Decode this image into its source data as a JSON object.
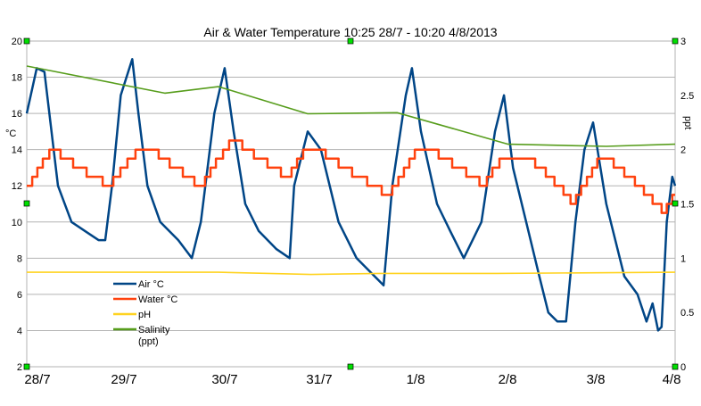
{
  "chart_data": {
    "type": "line",
    "title": "Air & Water Temperature 10:25 28/7 - 10:20 4/8/2013",
    "ylabel": "°C",
    "y2label": "ppt",
    "ylim": [
      2,
      20
    ],
    "yticks": [
      2,
      4,
      6,
      8,
      10,
      12,
      14,
      16,
      18,
      20
    ],
    "y2lim": [
      0,
      3
    ],
    "y2ticks": [
      "0",
      "0.5",
      "1",
      "1.5",
      "2",
      "2.5",
      "3"
    ],
    "xrange": [
      "28/7 10:25",
      "4/8 10:20"
    ],
    "xticks": [
      "28/7",
      "29/7",
      "30/7",
      "31/7",
      "1/8",
      "2/8",
      "3/8",
      "4/8"
    ],
    "grid": true,
    "legend_position": "bottom-left",
    "series": [
      {
        "name": "Air °C",
        "axis": "left",
        "color": "#004586",
        "points": [
          [
            "28/7 10:25",
            16
          ],
          [
            "28/7 13:00",
            18.5
          ],
          [
            "28/7 15:00",
            18.3
          ],
          [
            "28/7 18:30",
            12
          ],
          [
            "28/7 22:00",
            10
          ],
          [
            "29/7 01:30",
            9.5
          ],
          [
            "29/7 05:00",
            9
          ],
          [
            "29/7 06:45",
            9
          ],
          [
            "29/7 08:30",
            12
          ],
          [
            "29/7 10:45",
            17
          ],
          [
            "29/7 13:45",
            19
          ],
          [
            "29/7 15:20",
            16
          ],
          [
            "29/7 17:40",
            12
          ],
          [
            "29/7 21:00",
            10
          ],
          [
            "30/7 01:40",
            9
          ],
          [
            "30/7 05:10",
            8
          ],
          [
            "30/7 07:30",
            10
          ],
          [
            "30/7 11:00",
            16
          ],
          [
            "30/7 13:40",
            18.5
          ],
          [
            "30/7 16:00",
            15
          ],
          [
            "30/7 19:00",
            11
          ],
          [
            "30/7 22:30",
            9.5
          ],
          [
            "31/7 03:05",
            8.5
          ],
          [
            "31/7 06:30",
            8
          ],
          [
            "31/7 07:40",
            12
          ],
          [
            "31/7 11:10",
            15
          ],
          [
            "31/7 14:35",
            14
          ],
          [
            "31/7 19:10",
            10
          ],
          [
            "31/7 23:50",
            8
          ],
          [
            "1/8 04:30",
            7
          ],
          [
            "1/8 06:50",
            6.5
          ],
          [
            "1/8 09:05",
            12
          ],
          [
            "1/8 12:35",
            17
          ],
          [
            "1/8 14:10",
            18.5
          ],
          [
            "1/8 16:30",
            15
          ],
          [
            "1/8 20:40",
            11
          ],
          [
            "2/8 00:05",
            9.5
          ],
          [
            "2/8 03:35",
            8
          ],
          [
            "2/8 08:10",
            10
          ],
          [
            "2/8 11:40",
            15
          ],
          [
            "2/8 14:00",
            17
          ],
          [
            "2/8 16:20",
            13
          ],
          [
            "2/8 19:45",
            10
          ],
          [
            "2/8 23:10",
            7
          ],
          [
            "3/8 01:30",
            5
          ],
          [
            "3/8 03:50",
            4.5
          ],
          [
            "3/8 06:05",
            4.5
          ],
          [
            "3/8 08:30",
            10
          ],
          [
            "3/8 10:50",
            14
          ],
          [
            "3/8 13:05",
            15.5
          ],
          [
            "3/8 16:30",
            11
          ],
          [
            "3/8 21:10",
            7
          ],
          [
            "4/8 00:35",
            6
          ],
          [
            "4/8 02:55",
            4.5
          ],
          [
            "4/8 04:30",
            5.5
          ],
          [
            "4/8 05:55",
            4
          ],
          [
            "4/8 06:50",
            4.2
          ],
          [
            "4/8 08:10",
            10
          ],
          [
            "4/8 09:35",
            12.5
          ],
          [
            "4/8 10:20",
            12
          ]
        ]
      },
      {
        "name": "Water °C",
        "axis": "left",
        "color": "#ff420e",
        "step": true,
        "points": [
          [
            "28/7 10:25",
            12
          ],
          [
            "28/7 11:50",
            12.5
          ],
          [
            "28/7 13:10",
            13
          ],
          [
            "28/7 14:35",
            13.5
          ],
          [
            "28/7 16:15",
            14
          ],
          [
            "28/7 19:10",
            13.5
          ],
          [
            "28/7 22:25",
            13
          ],
          [
            "29/7 01:55",
            12.5
          ],
          [
            "29/7 06:05",
            12
          ],
          [
            "29/7 08:50",
            12.5
          ],
          [
            "29/7 10:40",
            13
          ],
          [
            "29/7 12:30",
            13.5
          ],
          [
            "29/7 14:35",
            14
          ],
          [
            "29/7 20:35",
            13.5
          ],
          [
            "29/7 23:25",
            13
          ],
          [
            "30/7 02:50",
            12.5
          ],
          [
            "30/7 05:50",
            12
          ],
          [
            "30/7 08:35",
            12.5
          ],
          [
            "30/7 10:00",
            13
          ],
          [
            "30/7 11:25",
            13.5
          ],
          [
            "30/7 13:15",
            14
          ],
          [
            "30/7 14:50",
            14.5
          ],
          [
            "30/7 18:15",
            14
          ],
          [
            "30/7 21:15",
            13.5
          ],
          [
            "31/7 00:45",
            13
          ],
          [
            "31/7 04:15",
            12.5
          ],
          [
            "31/7 07:00",
            13
          ],
          [
            "31/7 08:25",
            13.5
          ],
          [
            "31/7 10:00",
            14
          ],
          [
            "31/7 15:50",
            13.5
          ],
          [
            "31/7 19:10",
            13
          ],
          [
            "31/7 22:40",
            12.5
          ],
          [
            "1/8 02:35",
            12
          ],
          [
            "1/8 06:20",
            11.5
          ],
          [
            "1/8 09:05",
            12
          ],
          [
            "1/8 10:40",
            12.5
          ],
          [
            "1/8 12:05",
            13
          ],
          [
            "1/8 13:30",
            13.5
          ],
          [
            "1/8 14:55",
            14
          ],
          [
            "1/8 21:05",
            13.5
          ],
          [
            "2/8 00:35",
            13
          ],
          [
            "2/8 04:15",
            12.5
          ],
          [
            "2/8 07:40",
            12
          ],
          [
            "2/8 09:35",
            12.5
          ],
          [
            "2/8 11:00",
            13
          ],
          [
            "2/8 12:50",
            13.5
          ],
          [
            "2/8 22:05",
            13
          ],
          [
            "3/8 00:50",
            12.5
          ],
          [
            "3/8 03:05",
            12
          ],
          [
            "3/8 05:25",
            11.5
          ],
          [
            "3/8 07:15",
            11
          ],
          [
            "3/8 08:40",
            11.5
          ],
          [
            "3/8 10:00",
            12
          ],
          [
            "3/8 11:30",
            12.5
          ],
          [
            "3/8 12:50",
            13
          ],
          [
            "3/8 14:10",
            13.5
          ],
          [
            "3/8 18:25",
            13
          ],
          [
            "3/8 21:10",
            12.5
          ],
          [
            "3/8 23:55",
            12
          ],
          [
            "4/8 02:15",
            11.5
          ],
          [
            "4/8 04:30",
            11
          ],
          [
            "4/8 06:50",
            10.5
          ],
          [
            "4/8 08:10",
            11
          ],
          [
            "4/8 09:35",
            11.5
          ],
          [
            "4/8 10:20",
            11.5
          ]
        ]
      },
      {
        "name": "pH",
        "axis": "right",
        "color": "#ffd320",
        "points": [
          [
            "28/7 10:25",
            0.87
          ],
          [
            "30/7 12:00",
            0.87
          ],
          [
            "31/7 12:00",
            0.85
          ],
          [
            "1/8 06:00",
            0.86
          ],
          [
            "2/8 12:00",
            0.86
          ],
          [
            "4/8 10:20",
            0.87
          ]
        ]
      },
      {
        "name": "Salinity (ppt)",
        "axis": "right",
        "color": "#579d1c",
        "points": [
          [
            "28/7 10:25",
            2.77
          ],
          [
            "29/7 22:10",
            2.52
          ],
          [
            "30/7 12:05",
            2.58
          ],
          [
            "31/7 11:10",
            2.33
          ],
          [
            "1/8 10:20",
            2.34
          ],
          [
            "2/8 15:05",
            2.05
          ],
          [
            "3/8 16:30",
            2.03
          ],
          [
            "4/8 10:20",
            2.05
          ]
        ]
      }
    ]
  }
}
